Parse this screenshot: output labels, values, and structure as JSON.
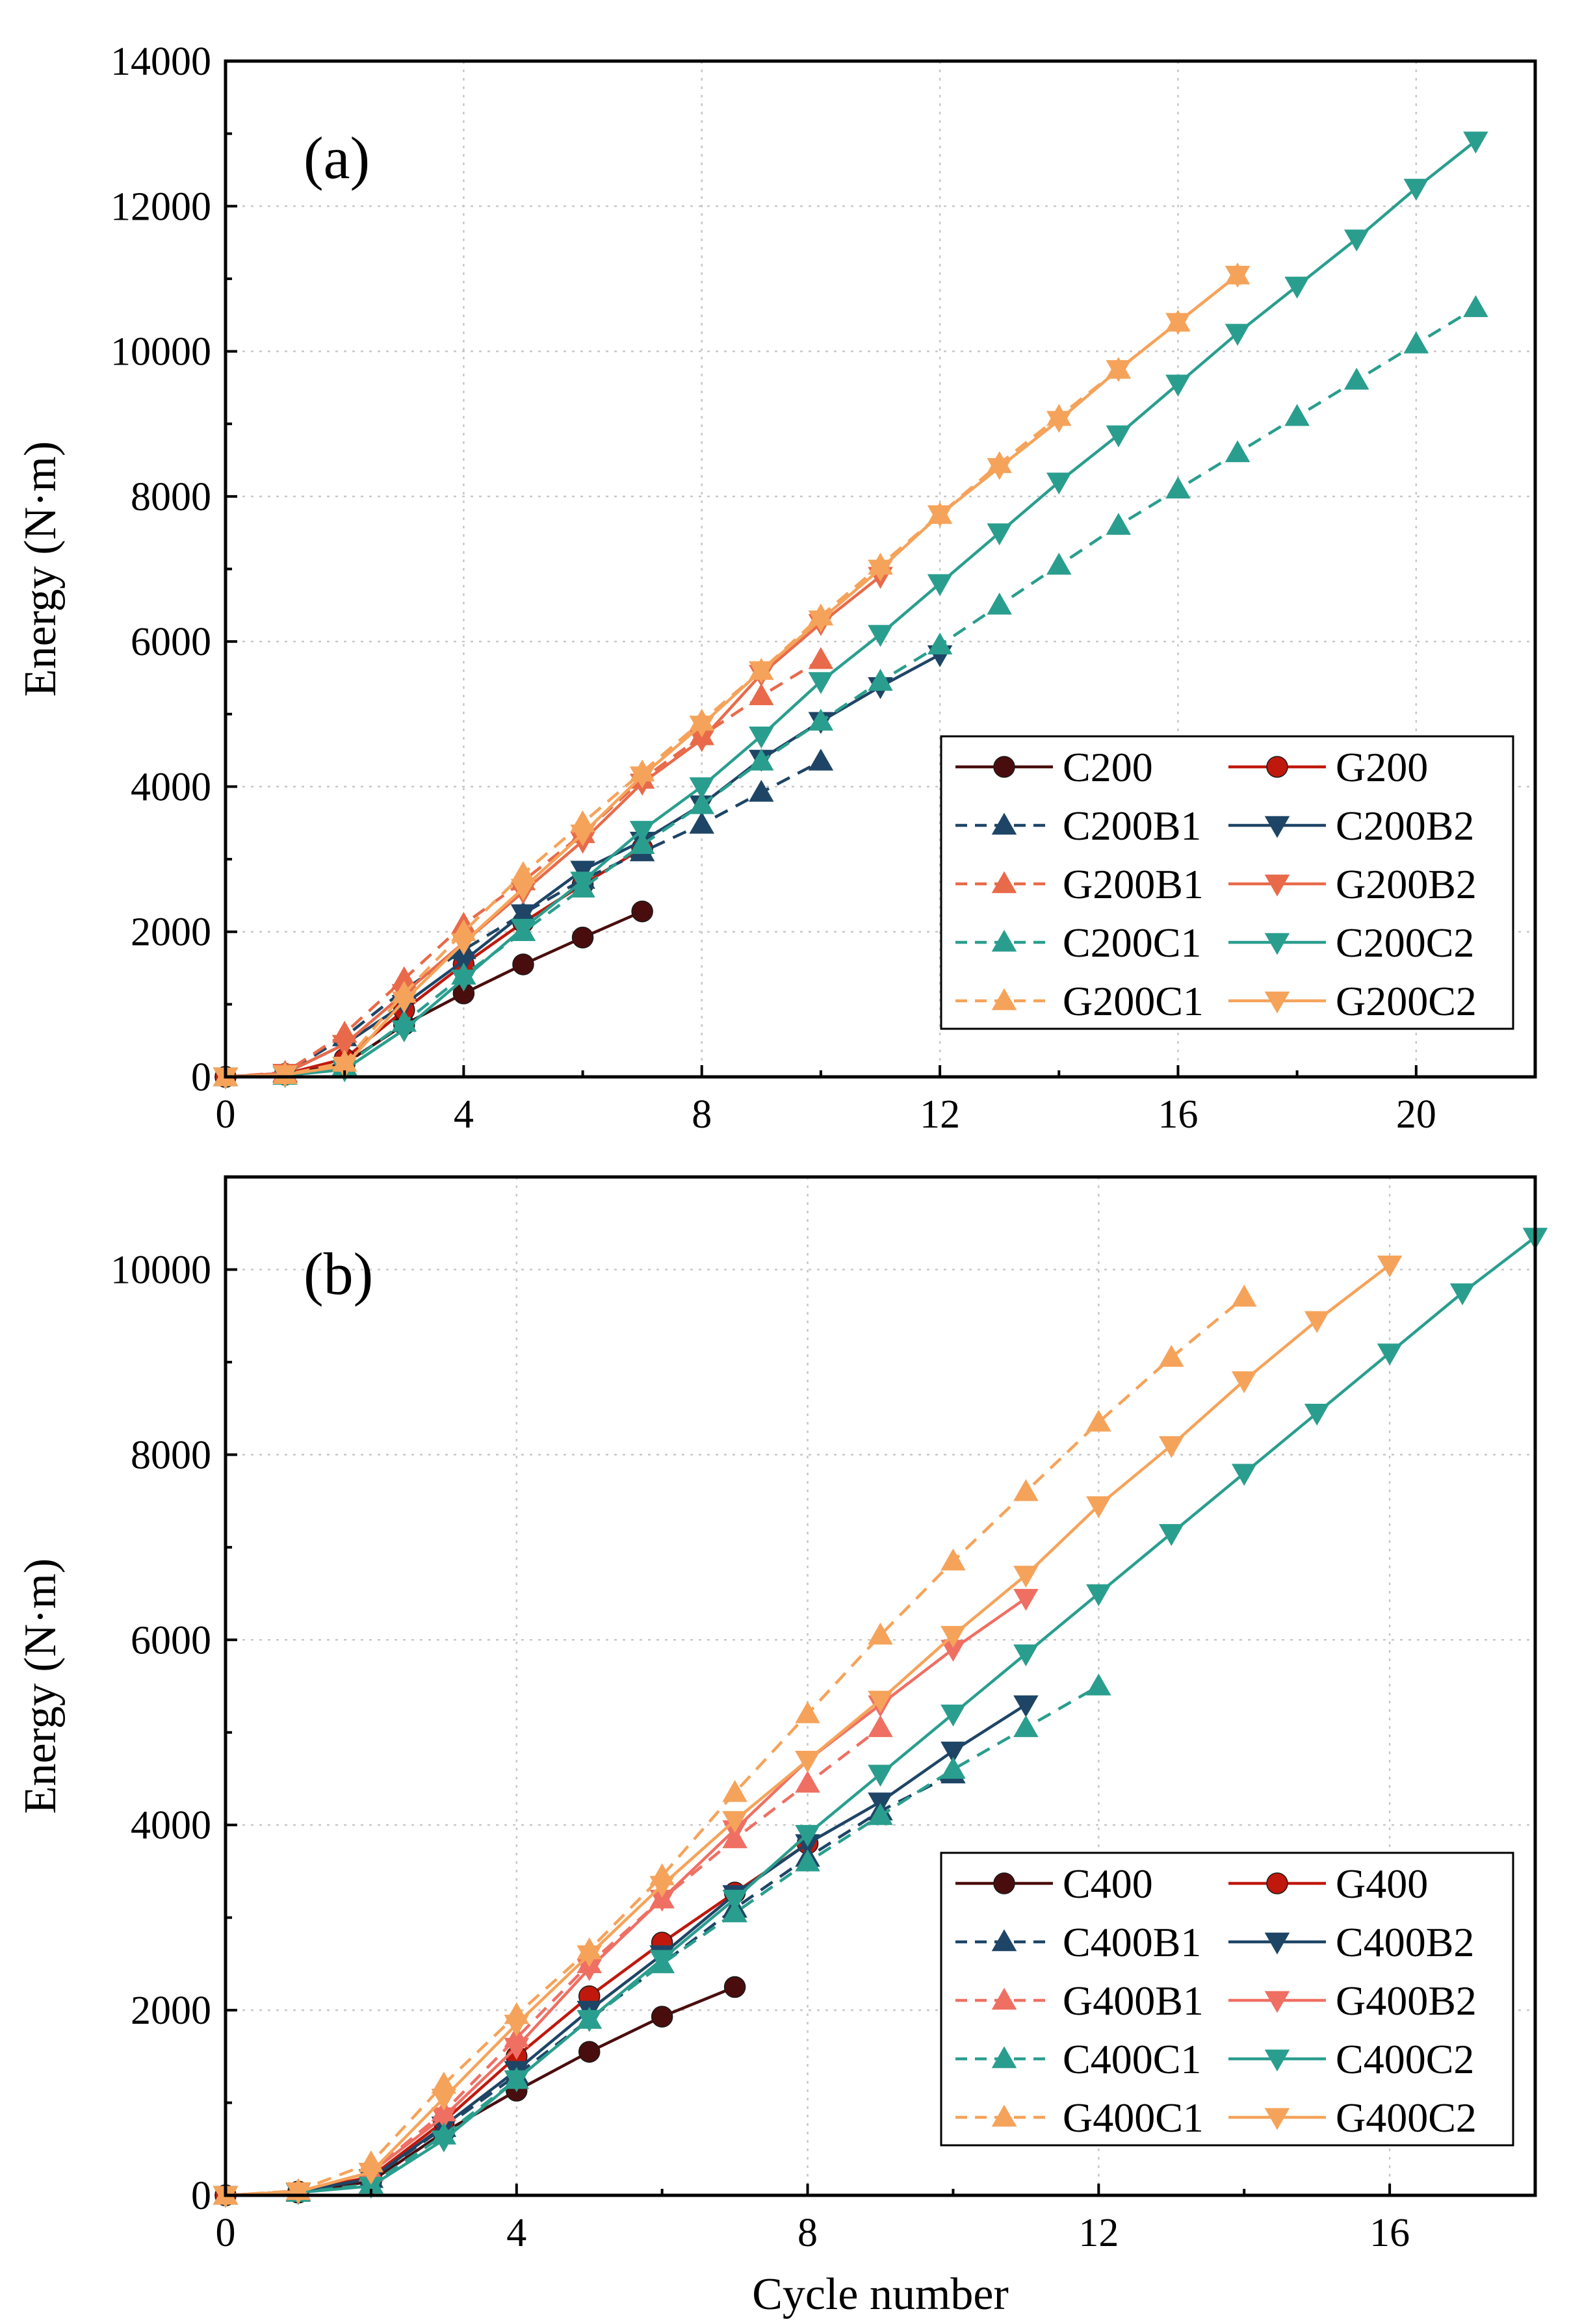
{
  "chart_data": [
    {
      "type": "line",
      "panel_label": "(a)",
      "xlabel": "",
      "ylabel": "Energy (N·m)",
      "xlim": [
        0,
        22
      ],
      "ylim": [
        0,
        14000
      ],
      "xticks": [
        0,
        4,
        8,
        12,
        16,
        20
      ],
      "yticks": [
        0,
        2000,
        4000,
        6000,
        8000,
        10000,
        12000,
        14000
      ],
      "grid": true,
      "legend_position": "bottom-right",
      "series": [
        {
          "name": "C200",
          "color": "#4a0d0d",
          "marker": "circle",
          "dashed": false,
          "x": [
            0,
            1,
            2,
            3,
            4,
            5,
            6,
            7
          ],
          "y": [
            0,
            30,
            180,
            720,
            1150,
            1550,
            1920,
            2280
          ]
        },
        {
          "name": "G200",
          "color": "#c0180c",
          "marker": "circle",
          "dashed": false,
          "x": [
            0,
            1,
            2,
            3,
            4,
            5,
            6,
            7
          ],
          "y": [
            0,
            40,
            250,
            920,
            1550,
            2130,
            2650,
            3150
          ]
        },
        {
          "name": "C200B1",
          "color": "#1e4566",
          "marker": "triangle-up",
          "dashed": true,
          "x": [
            0,
            1,
            2,
            3,
            4,
            5,
            6,
            7,
            8,
            9,
            10
          ],
          "y": [
            0,
            50,
            550,
            1200,
            1750,
            2250,
            2720,
            3100,
            3480,
            3920,
            4350
          ]
        },
        {
          "name": "C200B2",
          "color": "#1e4566",
          "marker": "triangle-down",
          "dashed": false,
          "x": [
            0,
            1,
            2,
            3,
            4,
            5,
            6,
            7,
            8,
            9,
            10,
            11,
            12
          ],
          "y": [
            0,
            50,
            450,
            1000,
            1600,
            2250,
            2850,
            3250,
            3750,
            4380,
            4900,
            5380,
            5820
          ]
        },
        {
          "name": "G200B1",
          "color": "#e86a4a",
          "marker": "triangle-up",
          "dashed": true,
          "x": [
            0,
            1,
            2,
            3,
            4,
            5,
            6,
            7,
            8,
            9,
            10
          ],
          "y": [
            0,
            60,
            600,
            1350,
            2100,
            2700,
            3350,
            4100,
            4700,
            5250,
            5750
          ]
        },
        {
          "name": "G200B2",
          "color": "#e86a4a",
          "marker": "triangle-down",
          "dashed": false,
          "x": [
            0,
            1,
            2,
            3,
            4,
            5,
            6,
            7,
            8,
            9,
            10,
            11
          ],
          "y": [
            0,
            50,
            450,
            1150,
            1850,
            2550,
            3250,
            4050,
            4650,
            5550,
            6250,
            6900
          ]
        },
        {
          "name": "C200C1",
          "color": "#2a9e8e",
          "marker": "triangle-up",
          "dashed": true,
          "x": [
            0,
            1,
            2,
            3,
            4,
            5,
            6,
            7,
            8,
            9,
            10,
            11,
            12,
            13,
            14,
            15,
            16,
            17,
            18,
            19,
            20,
            21
          ],
          "y": [
            0,
            20,
            150,
            750,
            1400,
            2000,
            2600,
            3200,
            3750,
            4350,
            4900,
            5450,
            5950,
            6500,
            7050,
            7600,
            8100,
            8600,
            9100,
            9600,
            10100,
            10600
          ]
        },
        {
          "name": "C200C2",
          "color": "#2a9e8e",
          "marker": "triangle-down",
          "dashed": false,
          "x": [
            0,
            1,
            2,
            3,
            4,
            5,
            6,
            7,
            8,
            9,
            10,
            11,
            12,
            13,
            14,
            15,
            16,
            17,
            18,
            19,
            20,
            21
          ],
          "y": [
            0,
            20,
            100,
            650,
            1350,
            2050,
            2700,
            3400,
            4000,
            4700,
            5450,
            6100,
            6800,
            7500,
            8200,
            8850,
            9550,
            10250,
            10900,
            11550,
            12250,
            12900
          ]
        },
        {
          "name": "G200C1",
          "color": "#f5a35a",
          "marker": "triangle-up",
          "dashed": true,
          "x": [
            0,
            1,
            2,
            3,
            4,
            5,
            6,
            7,
            8,
            9,
            10,
            11,
            12,
            13,
            14,
            15,
            16,
            17
          ],
          "y": [
            0,
            30,
            200,
            1150,
            2000,
            2800,
            3500,
            4200,
            4900,
            5600,
            6350,
            7050,
            7750,
            8450,
            9100,
            9750,
            10400,
            11050
          ]
        },
        {
          "name": "G200C2",
          "color": "#f5a35a",
          "marker": "triangle-down",
          "dashed": false,
          "x": [
            0,
            1,
            2,
            3,
            4,
            5,
            6,
            7,
            8,
            9,
            10,
            11,
            12,
            13,
            14,
            15,
            16,
            17
          ],
          "y": [
            0,
            30,
            150,
            1050,
            1850,
            2600,
            3350,
            4150,
            4850,
            5600,
            6300,
            7000,
            7750,
            8400,
            9050,
            9750,
            10400,
            11050
          ]
        }
      ]
    },
    {
      "type": "line",
      "panel_label": "(b)",
      "xlabel": "Cycle number",
      "ylabel": "Energy (N·m)",
      "xlim": [
        0,
        18
      ],
      "ylim": [
        0,
        11000
      ],
      "xticks": [
        0,
        4,
        8,
        12,
        16
      ],
      "yticks": [
        0,
        2000,
        4000,
        6000,
        8000,
        10000
      ],
      "grid": true,
      "legend_position": "bottom-right",
      "series": [
        {
          "name": "C400",
          "color": "#4a0d0d",
          "marker": "circle",
          "dashed": false,
          "x": [
            0,
            1,
            2,
            3,
            4,
            5,
            6,
            7
          ],
          "y": [
            0,
            30,
            150,
            680,
            1130,
            1550,
            1930,
            2250
          ]
        },
        {
          "name": "G400",
          "color": "#c0180c",
          "marker": "circle",
          "dashed": false,
          "x": [
            0,
            1,
            2,
            3,
            4,
            5,
            6,
            7,
            8
          ],
          "y": [
            0,
            40,
            200,
            800,
            1500,
            2150,
            2730,
            3270,
            3800
          ]
        },
        {
          "name": "C400B1",
          "color": "#1e4566",
          "marker": "triangle-up",
          "dashed": true,
          "x": [
            0,
            1,
            2,
            3,
            4,
            5,
            6,
            7,
            8,
            9,
            10
          ],
          "y": [
            0,
            40,
            180,
            730,
            1300,
            1900,
            2500,
            3100,
            3650,
            4150,
            4550
          ]
        },
        {
          "name": "C400B2",
          "color": "#1e4566",
          "marker": "triangle-down",
          "dashed": false,
          "x": [
            0,
            1,
            2,
            3,
            4,
            5,
            6,
            7,
            8,
            9,
            10,
            11
          ],
          "y": [
            0,
            40,
            180,
            750,
            1350,
            2000,
            2600,
            3250,
            3800,
            4250,
            4800,
            5300
          ]
        },
        {
          "name": "G400B1",
          "color": "#ef6f63",
          "marker": "triangle-up",
          "dashed": true,
          "x": [
            0,
            1,
            2,
            3,
            4,
            5,
            6,
            7,
            8,
            9
          ],
          "y": [
            0,
            40,
            250,
            900,
            1700,
            2500,
            3200,
            3850,
            4450,
            5050
          ]
        },
        {
          "name": "G400B2",
          "color": "#ef6f63",
          "marker": "triangle-down",
          "dashed": false,
          "x": [
            0,
            1,
            2,
            3,
            4,
            5,
            6,
            7,
            8,
            9,
            10,
            11
          ],
          "y": [
            0,
            40,
            250,
            850,
            1600,
            2450,
            3200,
            3950,
            4700,
            5300,
            5900,
            6450
          ]
        },
        {
          "name": "C400C1",
          "color": "#2a9e8e",
          "marker": "triangle-up",
          "dashed": true,
          "x": [
            0,
            1,
            2,
            3,
            4,
            5,
            6,
            7,
            8,
            9,
            10,
            11,
            12
          ],
          "y": [
            0,
            30,
            120,
            650,
            1250,
            1900,
            2500,
            3050,
            3600,
            4100,
            4600,
            5050,
            5500
          ]
        },
        {
          "name": "C400C2",
          "color": "#2a9e8e",
          "marker": "triangle-down",
          "dashed": false,
          "x": [
            0,
            1,
            2,
            3,
            4,
            5,
            6,
            7,
            8,
            9,
            10,
            11,
            12,
            13,
            14,
            15,
            16,
            17,
            18
          ],
          "y": [
            0,
            30,
            100,
            600,
            1250,
            1900,
            2550,
            3200,
            3900,
            4550,
            5200,
            5850,
            6500,
            7150,
            7800,
            8450,
            9100,
            9750,
            10350
          ]
        },
        {
          "name": "G400C1",
          "color": "#f5a35a",
          "marker": "triangle-up",
          "dashed": true,
          "x": [
            0,
            1,
            2,
            3,
            4,
            5,
            6,
            7,
            8,
            9,
            10,
            11,
            12,
            13,
            14
          ],
          "y": [
            0,
            50,
            350,
            1200,
            1950,
            2650,
            3450,
            4350,
            5200,
            6050,
            6850,
            7600,
            8350,
            9050,
            9700
          ]
        },
        {
          "name": "G400C2",
          "color": "#f5a35a",
          "marker": "triangle-down",
          "dashed": false,
          "x": [
            0,
            1,
            2,
            3,
            4,
            5,
            6,
            7,
            8,
            9,
            10,
            11,
            12,
            13,
            14,
            15,
            16
          ],
          "y": [
            0,
            40,
            250,
            1050,
            1850,
            2600,
            3350,
            4050,
            4700,
            5350,
            6050,
            6700,
            7450,
            8100,
            8800,
            9450,
            10050
          ]
        }
      ]
    }
  ]
}
